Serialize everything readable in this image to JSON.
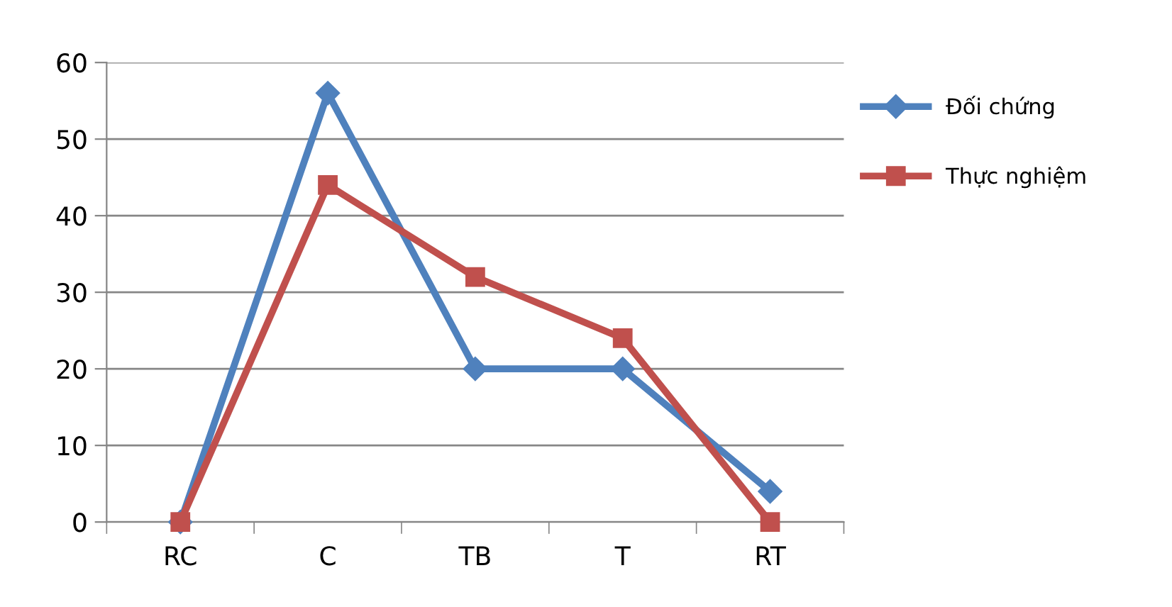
{
  "chart_data": {
    "type": "line",
    "categories": [
      "RC",
      "C",
      "TB",
      "T",
      "RT"
    ],
    "series": [
      {
        "name": "Đối chứng",
        "color": "#4f81bd",
        "marker": "diamond",
        "values": [
          0,
          56,
          20,
          20,
          4
        ]
      },
      {
        "name": "Thực nghiệm",
        "color": "#c0504d",
        "marker": "square",
        "values": [
          0,
          44,
          32,
          24,
          0
        ]
      }
    ],
    "ylim": [
      0,
      60
    ],
    "yticks": [
      0,
      10,
      20,
      30,
      40,
      50,
      60
    ],
    "grid": "y",
    "legend": "right",
    "line_style": "solid"
  }
}
